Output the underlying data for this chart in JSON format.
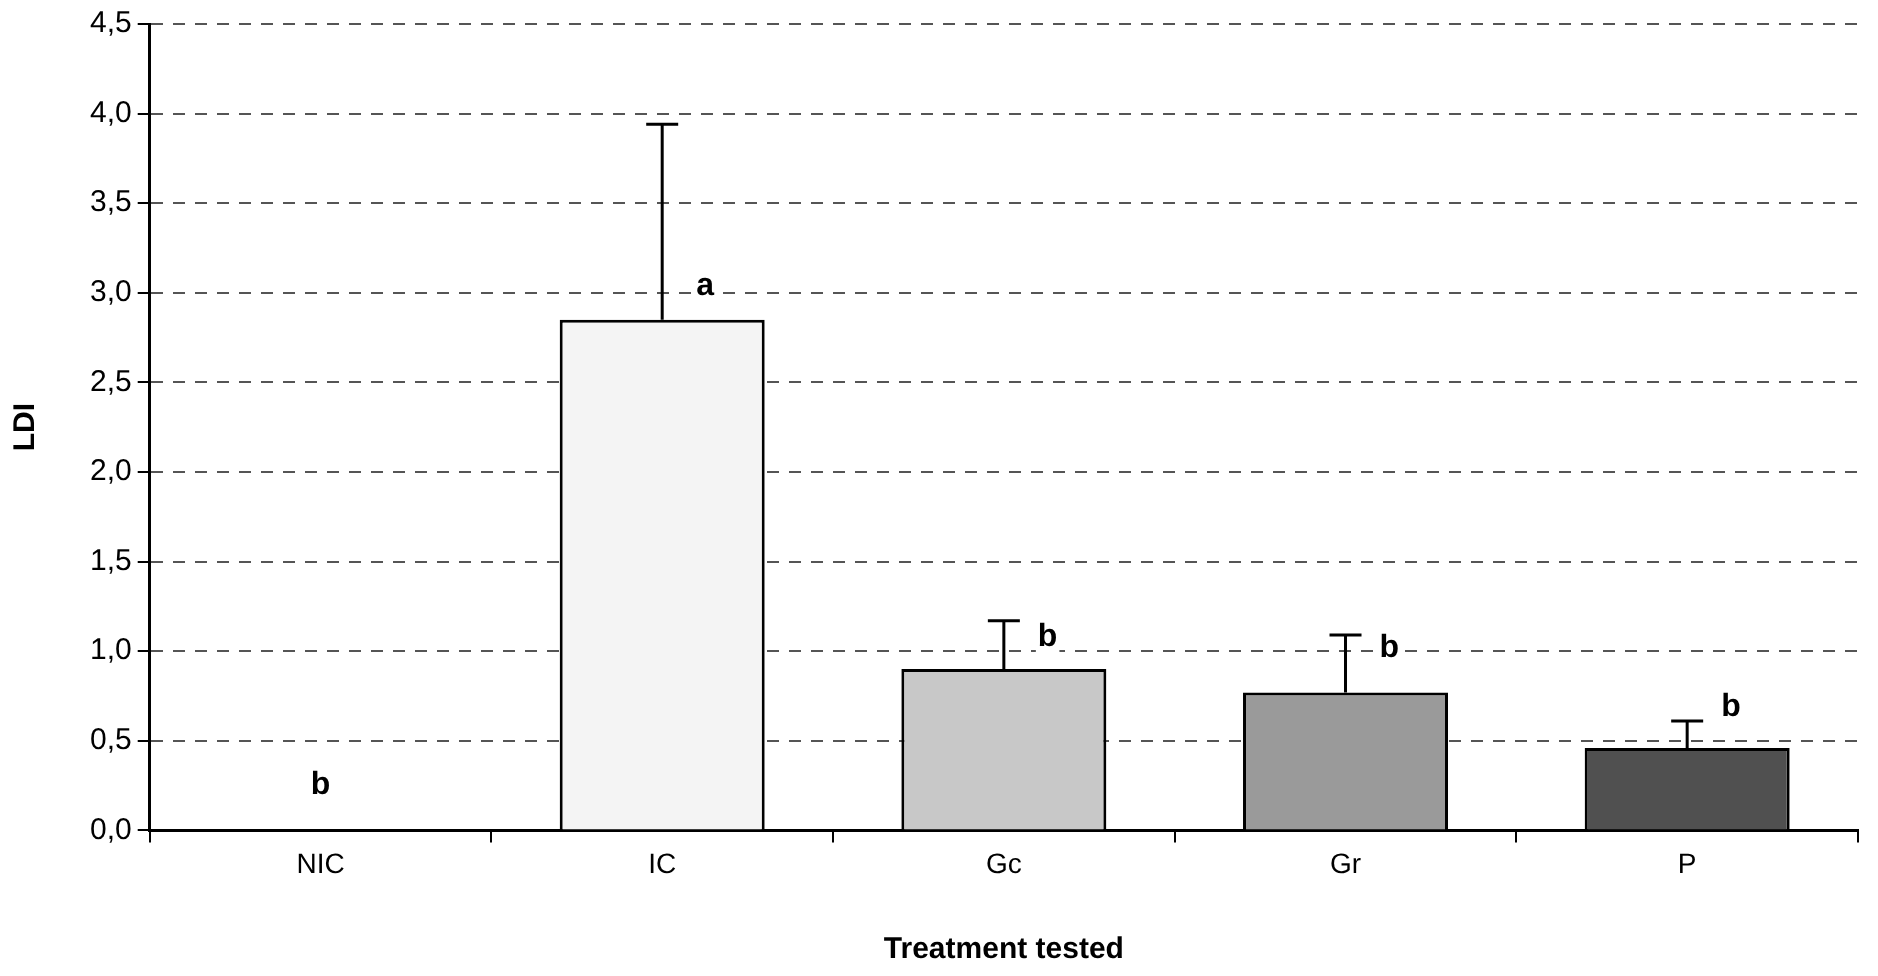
{
  "chart_data": {
    "type": "bar",
    "xlabel": "Treatment tested",
    "ylabel": "LDI",
    "categories": [
      "NIC",
      "IC",
      "Gc",
      "Gr",
      "P"
    ],
    "values": [
      0,
      2.85,
      0.9,
      0.77,
      0.46
    ],
    "colors": [
      "#ffffff",
      "#f4f4f4",
      "#c8c8c8",
      "#9a9a9a",
      "#505050"
    ],
    "errors": [
      null,
      [
        2.85,
        3.94
      ],
      [
        0.9,
        1.17
      ],
      [
        0.77,
        1.09
      ],
      [
        0.46,
        0.61
      ]
    ],
    "ylim": [
      0,
      4.5
    ],
    "yticks": [
      {
        "value": 0,
        "label": "0,0"
      },
      {
        "value": 0.5,
        "label": "0,5"
      },
      {
        "value": 1,
        "label": "1,0"
      },
      {
        "value": 1.5,
        "label": "1,5"
      },
      {
        "value": 2,
        "label": "2,0"
      },
      {
        "value": 2.5,
        "label": "2,5"
      },
      {
        "value": 3,
        "label": "3,0"
      },
      {
        "value": 3.5,
        "label": "3,5"
      },
      {
        "value": 4,
        "label": "4,0"
      },
      {
        "value": 4.5,
        "label": "4,5"
      }
    ],
    "grid": "y",
    "legend": false,
    "annotations": [
      {
        "text": "b",
        "x": "NIC",
        "y": 0
      },
      {
        "text": "a",
        "x": "IC",
        "y": 2.99
      },
      {
        "text": "b",
        "x": "Gc",
        "y": 1.03
      },
      {
        "text": "b",
        "x": "Gr",
        "y": 0.97
      },
      {
        "text": "b",
        "x": "P",
        "y": 0.64
      }
    ]
  }
}
